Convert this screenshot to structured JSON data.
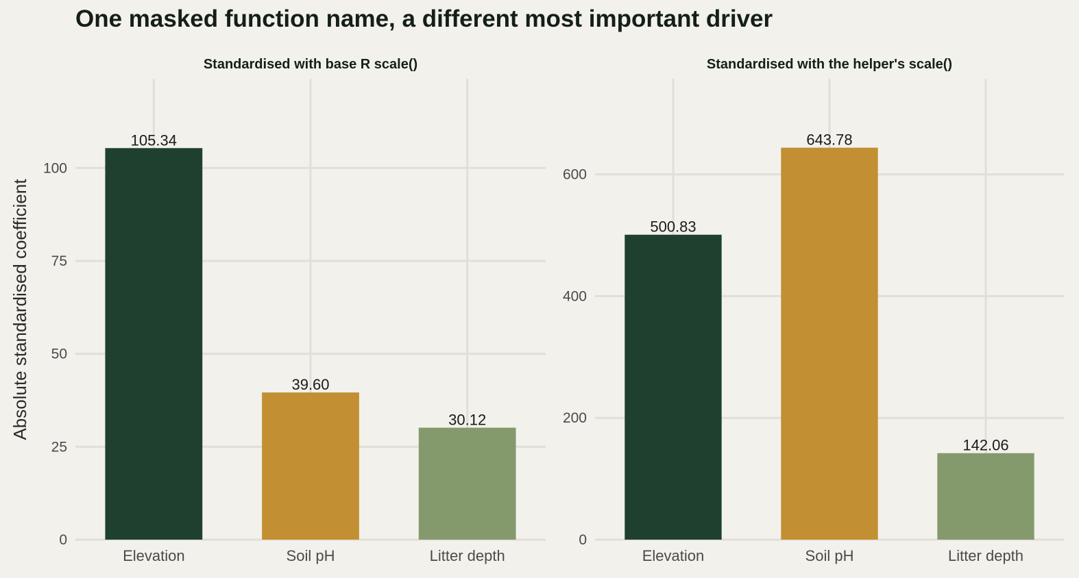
{
  "title": "One masked function name, a different most important driver",
  "ylabel": "Absolute standardised coefficient",
  "colors": {
    "background": "#f2f1eb",
    "grid": "#e0dfd8",
    "Elevation": "#1f402e",
    "Soil pH": "#c29032",
    "Litter depth": "#849a6d"
  },
  "chart_data": [
    {
      "type": "bar",
      "title": "Standardised with base R scale()",
      "categories": [
        "Elevation",
        "Soil pH",
        "Litter depth"
      ],
      "values": [
        105.34,
        39.6,
        30.12
      ],
      "value_labels": [
        "105.34",
        "39.60",
        "30.12"
      ],
      "ylim": [
        0,
        124
      ],
      "yticks": [
        0,
        25,
        50,
        75,
        100
      ],
      "grid": true
    },
    {
      "type": "bar",
      "title": "Standardised with the helper's scale()",
      "categories": [
        "Elevation",
        "Soil pH",
        "Litter depth"
      ],
      "values": [
        500.83,
        643.78,
        142.06
      ],
      "value_labels": [
        "500.83",
        "643.78",
        "142.06"
      ],
      "ylim": [
        0,
        757
      ],
      "yticks": [
        0,
        200,
        400,
        600
      ],
      "grid": true
    }
  ]
}
